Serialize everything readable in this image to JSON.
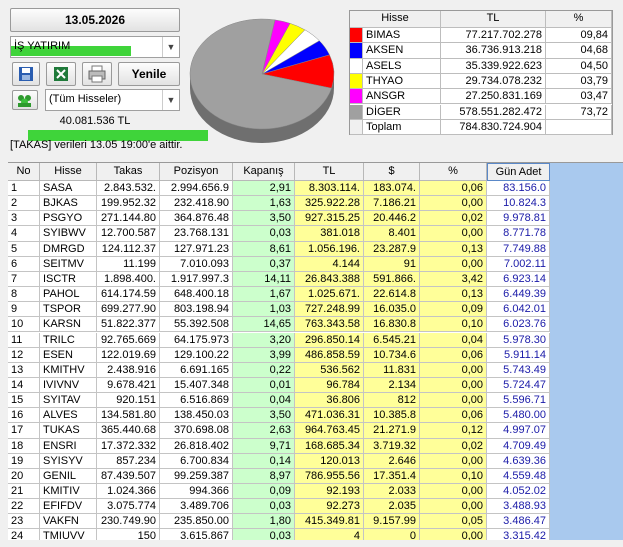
{
  "header": {
    "date": "13.05.2026",
    "broker": "İŞ YATIRIM",
    "refresh_button": "Yenile",
    "filter": "(Tüm Hisseler)",
    "total": "40.081.536 TL",
    "note": "[TAKAS] verileri 13.05 19:00'e aittir."
  },
  "chart_data": {
    "type": "pie",
    "categories": [
      "BIMAS",
      "AKSEN",
      "ASELS",
      "THYAO",
      "ANSGR",
      "DİGER"
    ],
    "values": [
      9.84,
      4.68,
      4.5,
      3.79,
      3.47,
      73.72
    ],
    "value_labels": [
      "09,84",
      "04,68",
      "04,50",
      "03,79",
      "03,47",
      "73,72"
    ],
    "colors": [
      "#ff0000",
      "#0000ff",
      "#ffffff",
      "#ffff00",
      "#ff00ff",
      "#a0a0a0"
    ]
  },
  "summary_table": {
    "columns": [
      "Hisse",
      "TL",
      "%"
    ],
    "tl": [
      "77.217.702.278",
      "36.736.913.218",
      "35.339.922.623",
      "29.734.078.232",
      "27.250.831.169",
      "578.551.282.472"
    ],
    "total_label": "Toplam",
    "total_tl": "784.830.724.904"
  },
  "main_table": {
    "columns": [
      "No",
      "Hisse",
      "Takas",
      "Pozisyon",
      "Kapanış",
      "TL",
      "$",
      "%",
      "Gün Adet"
    ],
    "rows": [
      [
        "1",
        "SASA",
        "2.843.532.",
        "2.994.656.9",
        "2,91",
        "8.303.114.",
        "183.074.",
        "0,06",
        "83.156.0"
      ],
      [
        "2",
        "BJKAS",
        "199.952.32",
        "232.418.90",
        "1,63",
        "325.922.28",
        "7.186.21",
        "0,00",
        "10.824.3"
      ],
      [
        "3",
        "PSGYO",
        "271.144.80",
        "364.876.48",
        "3,50",
        "927.315.25",
        "20.446.2",
        "0,02",
        "9.978.81"
      ],
      [
        "4",
        "SYIBWV",
        "12.700.587",
        "23.768.131",
        "0,03",
        "381.018",
        "8.401",
        "0,00",
        "8.771.78"
      ],
      [
        "5",
        "DMRGD",
        "124.112.37",
        "127.971.23",
        "8,61",
        "1.056.196.",
        "23.287.9",
        "0,13",
        "7.749.88"
      ],
      [
        "6",
        "SEITMV",
        "11.199",
        "7.010.093",
        "0,37",
        "4.144",
        "91",
        "0,00",
        "7.002.11"
      ],
      [
        "7",
        "ISCTR",
        "1.898.400.",
        "1.917.997.3",
        "14,11",
        "26.843.388",
        "591.866.",
        "3,42",
        "6.923.14"
      ],
      [
        "8",
        "PAHOL",
        "614.174.59",
        "648.400.18",
        "1,67",
        "1.025.671.",
        "22.614.8",
        "0,13",
        "6.449.39"
      ],
      [
        "9",
        "TSPOR",
        "699.277.90",
        "803.198.94",
        "1,03",
        "727.248.99",
        "16.035.0",
        "0,09",
        "6.042.01"
      ],
      [
        "10",
        "KARSN",
        "51.822.377",
        "55.392.508",
        "14,65",
        "763.343.58",
        "16.830.8",
        "0,10",
        "6.023.76"
      ],
      [
        "11",
        "TRILC",
        "92.765.669",
        "64.175.973",
        "3,20",
        "296.850.14",
        "6.545.21",
        "0,04",
        "5.978.30"
      ],
      [
        "12",
        "ESEN",
        "122.019.69",
        "129.100.22",
        "3,99",
        "486.858.59",
        "10.734.6",
        "0,06",
        "5.911.14"
      ],
      [
        "13",
        "KMITHV",
        "2.438.916",
        "6.691.165",
        "0,22",
        "536.562",
        "11.831",
        "0,00",
        "5.743.49"
      ],
      [
        "14",
        "IVIVNV",
        "9.678.421",
        "15.407.348",
        "0,01",
        "96.784",
        "2.134",
        "0,00",
        "5.724.47"
      ],
      [
        "15",
        "SYITAV",
        "920.151",
        "6.516.869",
        "0,04",
        "36.806",
        "812",
        "0,00",
        "5.596.71"
      ],
      [
        "16",
        "ALVES",
        "134.581.80",
        "138.450.03",
        "3,50",
        "471.036.31",
        "10.385.8",
        "0,06",
        "5.480.00"
      ],
      [
        "17",
        "TUKAS",
        "365.440.68",
        "370.698.08",
        "2,63",
        "964.763.45",
        "21.271.9",
        "0,12",
        "4.997.07"
      ],
      [
        "18",
        "ENSRI",
        "17.372.332",
        "26.818.402",
        "9,71",
        "168.685.34",
        "3.719.32",
        "0,02",
        "4.709.49"
      ],
      [
        "19",
        "SYISYV",
        "857.234",
        "6.700.834",
        "0,14",
        "120.013",
        "2.646",
        "0,00",
        "4.639.36"
      ],
      [
        "20",
        "GENIL",
        "87.439.507",
        "99.259.387",
        "8,97",
        "786.955.56",
        "17.351.4",
        "0,10",
        "4.559.48"
      ],
      [
        "21",
        "KMITIV",
        "1.024.366",
        "994.366",
        "0,09",
        "92.193",
        "2.033",
        "0,00",
        "4.052.02"
      ],
      [
        "22",
        "EFIFDV",
        "3.075.774",
        "3.489.706",
        "0,03",
        "92.273",
        "2.035",
        "0,00",
        "3.488.93"
      ],
      [
        "23",
        "VAKFN",
        "230.749.90",
        "235.850.00",
        "1,80",
        "415.349.81",
        "9.157.99",
        "0,05",
        "3.486.47"
      ],
      [
        "24",
        "TMIUVV",
        "150",
        "3.615.867",
        "0,03",
        "4",
        "0",
        "0,00",
        "3.315.42"
      ]
    ]
  }
}
